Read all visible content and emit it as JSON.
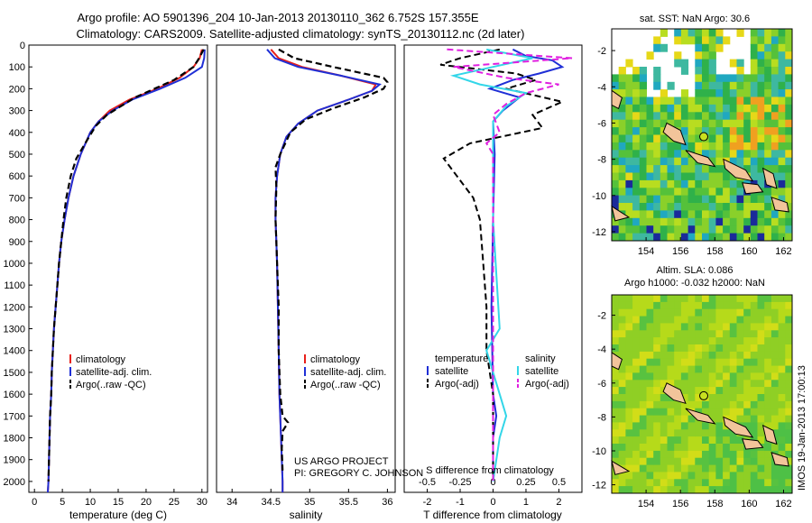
{
  "header": {
    "title_line1": "Argo profile: AO 5901396_204 10-Jan-2013 20130110_362 6.752S 157.355E",
    "title_line2": "Climatology: CARS2009. Satellite-adjusted climatology: synTS_20130112.nc (2d later)"
  },
  "colors": {
    "climatology": "#e8201a",
    "satellite": "#1f2fd6",
    "argo": "#000000",
    "salinity_satellite": "#33d6e8",
    "salinity_argo": "#e020e0",
    "land": "#f2c49a"
  },
  "chart_data": [
    {
      "type": "line",
      "panel": "temperature",
      "xlabel": "temperature (deg C)",
      "ylabel": "",
      "xlim": [
        -1,
        31
      ],
      "ylim": [
        2050,
        0
      ],
      "xticks": [
        "0",
        "5",
        "10",
        "15",
        "20",
        "25",
        "30"
      ],
      "yticks": [
        "0",
        "100",
        "200",
        "300",
        "400",
        "500",
        "600",
        "700",
        "800",
        "900",
        "1000",
        "1100",
        "1200",
        "1300",
        "1400",
        "1500",
        "1600",
        "1700",
        "1800",
        "1900",
        "2000"
      ],
      "legend": [
        "climatology",
        "satellite-adj. clim.",
        "Argo(..raw -QC)"
      ],
      "series": [
        {
          "name": "climatology",
          "style": "solid",
          "color_key": "climatology",
          "points": [
            [
              30,
              20
            ],
            [
              29.6,
              60
            ],
            [
              28.5,
              100
            ],
            [
              26,
              150
            ],
            [
              22,
              200
            ],
            [
              17,
              250
            ],
            [
              13.5,
              300
            ],
            [
              11.5,
              350
            ],
            [
              10,
              400
            ],
            [
              8.3,
              500
            ],
            [
              7,
              600
            ],
            [
              6.1,
              700
            ],
            [
              5.4,
              800
            ],
            [
              4.8,
              900
            ],
            [
              4.4,
              1000
            ],
            [
              4.1,
              1100
            ],
            [
              3.8,
              1200
            ],
            [
              3.5,
              1300
            ],
            [
              3.3,
              1400
            ],
            [
              3.1,
              1500
            ],
            [
              3,
              1600
            ],
            [
              2.8,
              1700
            ],
            [
              2.7,
              1800
            ],
            [
              2.6,
              1900
            ],
            [
              2.5,
              2000
            ],
            [
              2.4,
              2050
            ]
          ]
        },
        {
          "name": "satellite-adj. clim.",
          "style": "solid",
          "color_key": "satellite",
          "points": [
            [
              30.5,
              20
            ],
            [
              30.4,
              60
            ],
            [
              30,
              100
            ],
            [
              27,
              150
            ],
            [
              22.5,
              200
            ],
            [
              17.5,
              250
            ],
            [
              14,
              300
            ],
            [
              11.5,
              350
            ],
            [
              10,
              400
            ],
            [
              8.3,
              500
            ],
            [
              7,
              600
            ],
            [
              6.1,
              700
            ],
            [
              5.4,
              800
            ],
            [
              4.8,
              900
            ],
            [
              4.4,
              1000
            ],
            [
              4.1,
              1100
            ],
            [
              3.8,
              1200
            ],
            [
              3.5,
              1300
            ],
            [
              3.3,
              1400
            ],
            [
              3.1,
              1500
            ],
            [
              3,
              1600
            ],
            [
              2.8,
              1700
            ],
            [
              2.7,
              1800
            ],
            [
              2.6,
              1900
            ],
            [
              2.5,
              2000
            ],
            [
              2.4,
              2050
            ]
          ]
        },
        {
          "name": "Argo(..raw -QC)",
          "style": "dashed",
          "color_key": "argo",
          "points": [
            [
              30.3,
              20
            ],
            [
              29.5,
              60
            ],
            [
              28.5,
              100
            ],
            [
              25,
              160
            ],
            [
              21.5,
              200
            ],
            [
              18,
              240
            ],
            [
              15.5,
              280
            ],
            [
              13,
              320
            ],
            [
              11,
              370
            ],
            [
              9.8,
              420
            ],
            [
              7.5,
              520
            ],
            [
              6.5,
              600
            ],
            [
              5.7,
              700
            ],
            [
              5.2,
              800
            ],
            [
              4.8,
              900
            ],
            [
              4.4,
              1000
            ],
            [
              4.1,
              1100
            ],
            [
              3.8,
              1200
            ],
            [
              3.5,
              1300
            ],
            [
              3.3,
              1400
            ],
            [
              3.1,
              1500
            ],
            [
              3,
              1600
            ],
            [
              2.8,
              1700
            ],
            [
              2.7,
              1800
            ],
            [
              2.6,
              1900
            ],
            [
              2.5,
              2000
            ]
          ]
        }
      ]
    },
    {
      "type": "line",
      "panel": "salinity",
      "xlabel": "salinity",
      "xlim": [
        33.8,
        36.1
      ],
      "ylim": [
        2050,
        0
      ],
      "xticks": [
        "34",
        "34.5",
        "35",
        "35.5",
        "36"
      ],
      "legend": [
        "climatology",
        "satellite-adj. clim.",
        "Argo(..raw -QC)"
      ],
      "series": [
        {
          "name": "climatology",
          "style": "solid",
          "color_key": "climatology",
          "points": [
            [
              34.5,
              20
            ],
            [
              34.6,
              60
            ],
            [
              34.9,
              100
            ],
            [
              35.4,
              140
            ],
            [
              35.85,
              180
            ],
            [
              35.8,
              210
            ],
            [
              35.5,
              250
            ],
            [
              35.1,
              300
            ],
            [
              34.85,
              360
            ],
            [
              34.7,
              420
            ],
            [
              34.62,
              500
            ],
            [
              34.58,
              600
            ],
            [
              34.56,
              700
            ],
            [
              34.56,
              800
            ],
            [
              34.57,
              900
            ],
            [
              34.58,
              1000
            ],
            [
              34.59,
              1200
            ],
            [
              34.6,
              1400
            ],
            [
              34.61,
              1600
            ],
            [
              34.63,
              1800
            ],
            [
              34.65,
              2000
            ],
            [
              34.65,
              2050
            ]
          ]
        },
        {
          "name": "satellite-adj. clim.",
          "style": "solid",
          "color_key": "satellite",
          "points": [
            [
              34.45,
              20
            ],
            [
              34.55,
              60
            ],
            [
              34.85,
              100
            ],
            [
              35.4,
              140
            ],
            [
              35.9,
              180
            ],
            [
              35.8,
              210
            ],
            [
              35.5,
              250
            ],
            [
              35.1,
              300
            ],
            [
              34.85,
              360
            ],
            [
              34.7,
              420
            ],
            [
              34.62,
              500
            ],
            [
              34.58,
              600
            ],
            [
              34.56,
              700
            ],
            [
              34.56,
              800
            ],
            [
              34.57,
              900
            ],
            [
              34.58,
              1000
            ],
            [
              34.59,
              1200
            ],
            [
              34.6,
              1400
            ],
            [
              34.61,
              1600
            ],
            [
              34.63,
              1800
            ],
            [
              34.65,
              2000
            ],
            [
              34.65,
              2050
            ]
          ]
        },
        {
          "name": "Argo(..raw -QC)",
          "style": "dashed",
          "color_key": "argo",
          "points": [
            [
              34.6,
              20
            ],
            [
              34.8,
              60
            ],
            [
              35.3,
              100
            ],
            [
              35.95,
              150
            ],
            [
              36,
              170
            ],
            [
              35.95,
              200
            ],
            [
              35.7,
              240
            ],
            [
              35.3,
              290
            ],
            [
              34.95,
              340
            ],
            [
              34.75,
              400
            ],
            [
              34.62,
              500
            ],
            [
              34.56,
              560
            ],
            [
              34.57,
              650
            ],
            [
              34.56,
              800
            ],
            [
              34.57,
              900
            ],
            [
              34.58,
              1000
            ],
            [
              34.6,
              1200
            ],
            [
              34.6,
              1400
            ],
            [
              34.62,
              1600
            ],
            [
              34.65,
              1700
            ],
            [
              34.72,
              1730
            ],
            [
              34.65,
              1770
            ],
            [
              34.64,
              1850
            ],
            [
              34.65,
              1950
            ]
          ]
        }
      ]
    },
    {
      "type": "line",
      "panel": "difference",
      "xlabel": "T difference from climatology",
      "xlabel2": "S difference from climatology",
      "xlim": [
        -2.7,
        2.7
      ],
      "ylim": [
        2050,
        0
      ],
      "xticks_T": [
        "-2",
        "-1",
        "0",
        "1",
        "2"
      ],
      "xticks_S": [
        "-0.5",
        "-0.25",
        "0",
        "0.25",
        "0.5"
      ],
      "legend_titles": [
        "temperature",
        "salinity"
      ],
      "legend": [
        "satellite",
        "Argo(-adj)",
        "satellite",
        "Argo(-adj)"
      ],
      "series": [
        {
          "name": "T satellite",
          "style": "solid",
          "color_key": "satellite",
          "points": [
            [
              0.6,
              20
            ],
            [
              1,
              50
            ],
            [
              1.8,
              70
            ],
            [
              2.1,
              100
            ],
            [
              1.4,
              130
            ],
            [
              0.6,
              160
            ],
            [
              -0.1,
              200
            ],
            [
              0.8,
              240
            ],
            [
              0.3,
              300
            ],
            [
              0,
              350
            ],
            [
              0.05,
              500
            ],
            [
              0,
              800
            ],
            [
              -0.05,
              1200
            ],
            [
              0,
              1600
            ],
            [
              0.1,
              1700
            ],
            [
              0,
              1800
            ],
            [
              0,
              2000
            ]
          ]
        },
        {
          "name": "T Argo(-adj)",
          "style": "dashed",
          "color_key": "argo",
          "points": [
            [
              0.2,
              20
            ],
            [
              -1,
              60
            ],
            [
              -1.6,
              90
            ],
            [
              0.7,
              130
            ],
            [
              1.3,
              160
            ],
            [
              0.4,
              200
            ],
            [
              2.1,
              260
            ],
            [
              1.2,
              320
            ],
            [
              1.5,
              380
            ],
            [
              -0.7,
              450
            ],
            [
              -1.5,
              520
            ],
            [
              -1.1,
              600
            ],
            [
              -0.6,
              700
            ],
            [
              -0.4,
              800
            ],
            [
              -0.3,
              1000
            ],
            [
              -0.2,
              1200
            ],
            [
              -0.2,
              1400
            ],
            [
              0,
              1600
            ],
            [
              0,
              2000
            ]
          ]
        },
        {
          "name": "S satellite",
          "style": "solid",
          "color_key": "salinity_satellite",
          "points": [
            [
              -0.05,
              20
            ],
            [
              0.3,
              60
            ],
            [
              0,
              100
            ],
            [
              -0.3,
              140
            ],
            [
              -0.1,
              180
            ],
            [
              0.25,
              220
            ],
            [
              0.1,
              280
            ],
            [
              0,
              350
            ],
            [
              0,
              500
            ],
            [
              0,
              800
            ],
            [
              0.02,
              1000
            ],
            [
              0.05,
              1300
            ],
            [
              -0.05,
              1400
            ],
            [
              0.05,
              1600
            ],
            [
              0.1,
              1700
            ],
            [
              0.05,
              1800
            ],
            [
              0,
              2000
            ]
          ]
        },
        {
          "name": "S Argo(-adj)",
          "style": "dashed",
          "color_key": "salinity_argo",
          "points": [
            [
              -0.35,
              20
            ],
            [
              0.6,
              60
            ],
            [
              -0.3,
              100
            ],
            [
              0.1,
              150
            ],
            [
              0.5,
              180
            ],
            [
              0.25,
              220
            ],
            [
              0.1,
              270
            ],
            [
              0,
              320
            ],
            [
              0.05,
              400
            ],
            [
              -0.05,
              450
            ],
            [
              0,
              500
            ],
            [
              0,
              2000
            ]
          ]
        }
      ]
    },
    {
      "type": "heatmap",
      "panel": "sst_map",
      "title": "sat. SST: NaN Argo: 30.6",
      "xlim": [
        152,
        162.5
      ],
      "ylim": [
        -12.5,
        -0.8
      ],
      "xticks": [
        "154",
        "156",
        "158",
        "160",
        "162"
      ],
      "yticks": [
        "-2",
        "-4",
        "-6",
        "-8",
        "-10",
        "-12"
      ],
      "argo_position": [
        157.355,
        -6.752
      ]
    },
    {
      "type": "heatmap",
      "panel": "sla_map",
      "title_line1": "Altim. SLA: 0.086",
      "title_line2": "Argo h1000: -0.032 h2000: NaN",
      "xlim": [
        152,
        162.5
      ],
      "ylim": [
        -12.5,
        -0.8
      ],
      "xticks": [
        "154",
        "156",
        "158",
        "160",
        "162"
      ],
      "yticks": [
        "-2",
        "-4",
        "-6",
        "-8",
        "-10",
        "-12"
      ],
      "argo_position": [
        157.355,
        -6.752
      ]
    }
  ],
  "annotations": {
    "project_line1": "US ARGO PROJECT",
    "project_line2": "PI: GREGORY C. JOHNSON",
    "side_label": "IMOS 19-Jan-2013 17:00:13"
  }
}
